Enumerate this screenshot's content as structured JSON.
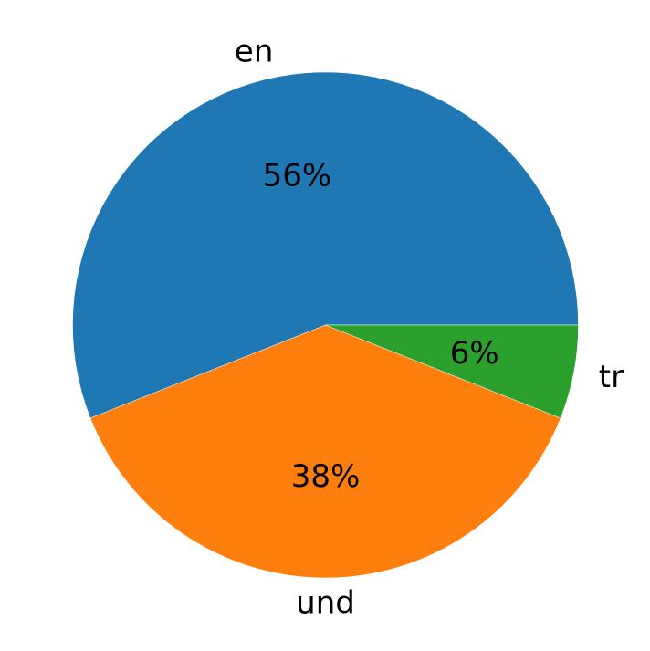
{
  "chart_data": {
    "type": "pie",
    "slices": [
      {
        "label": "en",
        "value": 56,
        "pct_label": "56%",
        "color": "#1f77b4"
      },
      {
        "label": "und",
        "value": 38,
        "pct_label": "38%",
        "color": "#ff7f0e"
      },
      {
        "label": "tr",
        "value": 6,
        "pct_label": "6%",
        "color": "#2ca02c"
      }
    ],
    "start_angle_deg": 0,
    "direction": "counterclockwise"
  }
}
